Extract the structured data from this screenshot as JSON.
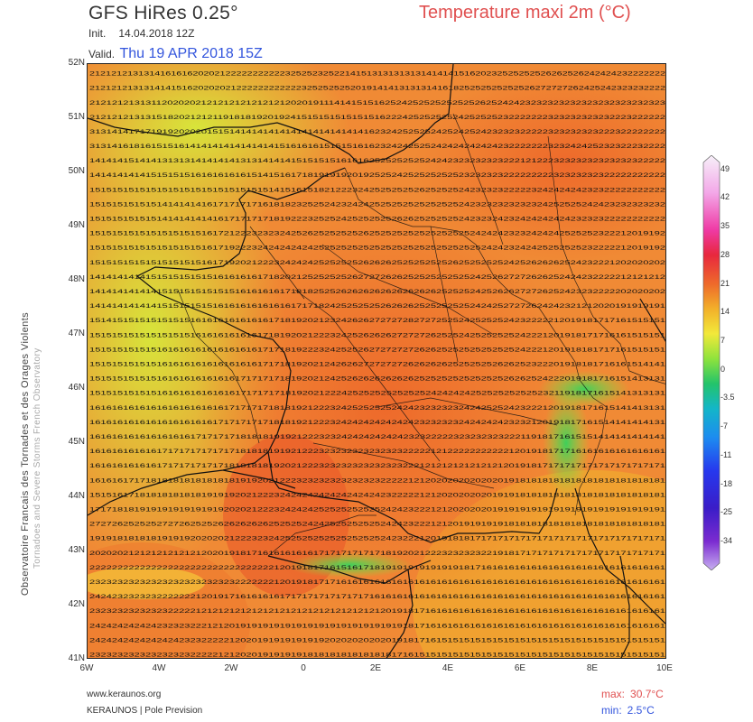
{
  "header": {
    "model": "GFS HiRes 0.25°",
    "parameter": "Temperature maxi 2m (°C)",
    "init_label": "Init.",
    "init_value": "14.04.2018 12Z",
    "valid_label": "Valid.",
    "valid_value": "Thu 19 APR 2018 15Z"
  },
  "side_credit": {
    "line1": "Observatoire Francais des Tornades et des Orages Violents",
    "line2": "Tornadoes and Severe Storms French Observatory"
  },
  "map": {
    "lat_labels": [
      "52N",
      "51N",
      "50N",
      "49N",
      "48N",
      "47N",
      "46N",
      "45N",
      "44N",
      "43N",
      "42N",
      "41N"
    ],
    "lon_labels": [
      "6W",
      "4W",
      "2W",
      "0",
      "2E",
      "4E",
      "6E",
      "8E",
      "10E"
    ],
    "lat_range": [
      41,
      52
    ],
    "lon_range": [
      -6,
      10
    ],
    "grid_values_rows": [
      "2121212131314161616202021222222222223252523252214151313131313141414151620232525252526262526242424232222222",
      "2121212131314141516202020212222222222223252525252019141413131314161825252525252526272727262425242323232222",
      "2121212131311202020212121212121212120201911141415151625242525252525252625242423232323232323232323232323",
      "2121212131315182021212119181819201924151515151515151622242525252524252525232222222323232323232223222222",
      "3131414171719192020201515141414141414141414141414162324252525242524252423232322222323232323222322222222",
      "3131416181615151614141414141414141516161615151516162324242525242424242424232222222323242425232322232222",
      "1414141514141313131414141413131414141515151516161625252525252424232323232322212122232323232323232322222",
      "1414141414151515151616161616151415161718191919201925252425252525252323232322222222232323232322222222222",
      "1515151515151515151515151515151514151615182122232425252525262525252423232322222324242424232322222222222",
      "1515151515151414141416171717171618182325252423242425252525252525252423232323232324252525242423232323232",
      "1515151515151414141414161717171718192223252524252525252626252525252423232423242424242423232322222222222",
      "1515151515151515151516172122232323242526252525252625252525252525252524242423232424242525252322212019192",
      "1515151515151515151516171922232424242424252525252525252525252525252525242423242425252525232222212019192",
      "1515151515151515151516171920212223242424252525252626262525252525262525252524252626262524232221202020202",
      "1414141414151515151515161616161718202125252525262727262625252525252524252627272626252424232222212121212",
      "1414141414141515151515151516161616171818252526262626262626262625252524252626272726252423232222202020202",
      "1414141414141515151515161616161616161717182425252525262626252525252524242527272624242321212020191919191",
      "1514151515151515151616161616161617181920212324262627272728272725252425252524232222212019181717161515151",
      "1515151515151515151616161616161718192021222324252626262727272625252425252525242221201918171716161515151",
      "1515151515151616161616161616161717181922232425252627272727262625252525252525242221201918181717161515151",
      "1515151515151616161616161616161717181920212426262727272726262626252525252626252322201918181716161514141",
      "1515151515151616161616161617171717181920212425262626262626252525252525252526262524222019181716151413131",
      "1515151515151616161616161617171717181920212224252525252525252424242425252525252523211918171615141313131",
      "1616161616161616161616161717171718181921222324252525252424232323232424252524232221201918171615141413131",
      "1616161616161616161616171717171718181921222324242424242424232323232424242423232120191817161514141414131",
      "1616161616161616161717171718181819192122232324242424242423232222232323232322211918171615151414141414141",
      "1616161616161717171717171718181819192122232323232323232322222121222222222221201918171716161616161616161",
      "1616161616161717171717171818181819202122232323232323232322212121212121212120191817171717171717171717171",
      "1616161717181818181818181819192021222323232323232323222221212020202020202019181818181818181818181818181",
      "1515161718181818181819191920212223242424242424242424232222212120202020201919181818181818181818181818181",
      "1717181819191919191919192020212223242424252525252525242423222121202020201919191919191919191919191919191",
      "2727262525252727262525262626262625252524242525252525242423222121201919191918181818181818181818181818181",
      "1919181818181919192020202122232324252525252525252525242322212019181817171717171717171717171717171717171",
      "2020202121212121212120201918171616161616171717171717181920212223232323221918171717171717171717171717171",
      "2222222222222222222222222222222221201918171615161718191919191919191817161616161616161616161616161616161",
      "2323232323232323232323232322222221201918171716161616161616161616161616161616161616161616161616161616161",
      "2424232323232222222120191716161616171717171717171716161616161616161616161616161616161616161616161616161",
      "2323232323232322222121212121212121212121212121212121201918171616161616161616161616161616161616161616161",
      "2424242424242323232221212019191919191919191919191919191918171616161616161616161616161616161616161616161",
      "2424242424242424232322222120201919191919192020202020201918171615151515151515151515151515151515151515151",
      "2323232323232323232222212120201919191918181818181818181716151515151515151515151515151515151515151515151"
    ]
  },
  "scale": {
    "labels": [
      "49",
      "42",
      "35",
      "28",
      "21",
      "14",
      "7",
      "0",
      "-3.5",
      "-7",
      "-11",
      "-18",
      "-25",
      "-34"
    ],
    "colors": [
      "#f7f0f9",
      "#f3a8e8",
      "#ef3aa5",
      "#e8273e",
      "#ee6a2b",
      "#f2b02a",
      "#f2e93a",
      "#8fe33c",
      "#24c46a",
      "#13b6c8",
      "#1d8cf0",
      "#2638ee",
      "#3a1dc8",
      "#7b2bd0",
      "#c8b0f0"
    ]
  },
  "footer": {
    "site": "www.keraunos.org",
    "brand": "KERAUNOS | Pole Prevision"
  },
  "stats": {
    "max_label": "max:",
    "max_value": "30.7°C",
    "min_label": "min:",
    "min_value": "2.5°C"
  }
}
